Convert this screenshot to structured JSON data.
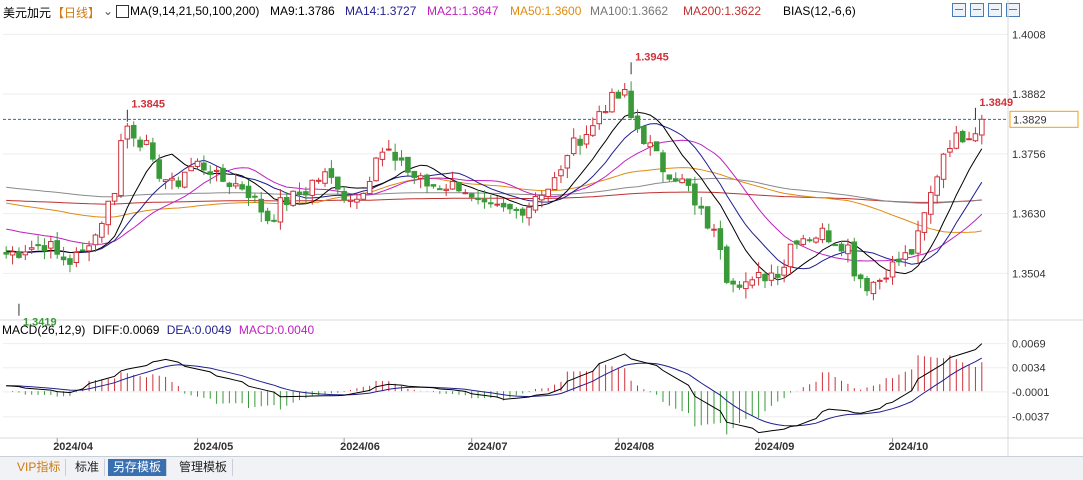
{
  "header": {
    "symbol": "美元加元",
    "period": "【日线】",
    "ma_label": "MA(9,14,21,50,100,200)",
    "ma9": "MA9:1.3786",
    "ma14": "MA14:1.3727",
    "ma21": "MA21:1.3647",
    "ma50": "MA50:1.3600",
    "ma100": "MA100:1.3662",
    "ma200": "MA200:1.3622",
    "bias": "BIAS(12,-6,6)"
  },
  "macd_header": {
    "label": "MACD(26,12,9)",
    "diff": "DIFF:0.0069",
    "dea": "DEA:0.0049",
    "macd": "MACD:0.0040"
  },
  "colors": {
    "up": "#d0303a",
    "down": "#3a9a3a",
    "ma9": "#000000",
    "ma14": "#1f1f8f",
    "ma21": "#c020c0",
    "ma50": "#e08a10",
    "ma100": "#8a8a8a",
    "ma200": "#c03030",
    "current_line": "#2a6ab0",
    "dea": "#1f1f8f",
    "diff": "#000000"
  },
  "bottom_tabs": [
    "VIP指标",
    "标准",
    "另存模板",
    "管理模板"
  ],
  "chart_data": {
    "type": "candlestick",
    "price_axis_ticks": [
      "1.4008",
      "1.3882",
      "1.3756",
      "1.3630",
      "1.3504"
    ],
    "current_price": "1.3829",
    "macd_axis_ticks": [
      "0.0069",
      "0.0034",
      "-0.0001",
      "-0.0037"
    ],
    "x_tick_labels": [
      "2024/04",
      "2024/05",
      "2024/06",
      "2024/07",
      "2024/08",
      "2024/09",
      "2024/10"
    ],
    "annotations": {
      "low": "1.3419",
      "high_april": "1.3845",
      "high_august": "1.3945",
      "high_recent": "1.3849"
    },
    "ylim": [
      1.341,
      1.403
    ],
    "anchors": [
      [
        "2024/03/20",
        1.3545
      ],
      [
        "2024/03/28",
        1.3565
      ],
      [
        "2024/04/03",
        1.353
      ],
      [
        "2024/04/09",
        1.3585
      ],
      [
        "2024/04/16",
        1.3815
      ],
      [
        "2024/04/19",
        1.377
      ],
      [
        "2024/04/25",
        1.369
      ],
      [
        "2024/05/01",
        1.3735
      ],
      [
        "2024/05/07",
        1.37
      ],
      [
        "2024/05/13",
        1.3675
      ],
      [
        "2024/05/16",
        1.362
      ],
      [
        "2024/05/22",
        1.3665
      ],
      [
        "2024/05/29",
        1.371
      ],
      [
        "2024/06/04",
        1.366
      ],
      [
        "2024/06/11",
        1.3755
      ],
      [
        "2024/06/14",
        1.3745
      ],
      [
        "2024/06/20",
        1.369
      ],
      [
        "2024/06/27",
        1.369
      ],
      [
        "2024/07/03",
        1.364
      ],
      [
        "2024/07/10",
        1.3635
      ],
      [
        "2024/07/17",
        1.3685
      ],
      [
        "2024/07/24",
        1.379
      ],
      [
        "2024/07/31",
        1.387
      ],
      [
        "2024/08/02",
        1.388
      ],
      [
        "2024/08/05",
        1.383
      ],
      [
        "2024/08/09",
        1.375
      ],
      [
        "2024/08/14",
        1.371
      ],
      [
        "2024/08/20",
        1.363
      ],
      [
        "2024/08/26",
        1.35
      ],
      [
        "2024/08/30",
        1.348
      ],
      [
        "2024/09/05",
        1.351
      ],
      [
        "2024/09/10",
        1.358
      ],
      [
        "2024/09/16",
        1.359
      ],
      [
        "2024/09/20",
        1.356
      ],
      [
        "2024/09/25",
        1.348
      ],
      [
        "2024/09/30",
        1.351
      ],
      [
        "2024/10/07",
        1.358
      ],
      [
        "2024/10/11",
        1.376
      ],
      [
        "2024/10/16",
        1.3795
      ],
      [
        "2024/10/21",
        1.3829
      ]
    ],
    "macd_anchors": [
      [
        "2024/03/20",
        0.0008
      ],
      [
        "2024/04/03",
        -0.0002
      ],
      [
        "2024/04/16",
        0.0032
      ],
      [
        "2024/04/24",
        0.0046
      ],
      [
        "2024/05/08",
        0.0018
      ],
      [
        "2024/05/20",
        -0.0008
      ],
      [
        "2024/06/03",
        -0.0006
      ],
      [
        "2024/06/12",
        0.001
      ],
      [
        "2024/06/26",
        0.0002
      ],
      [
        "2024/07/08",
        -0.0012
      ],
      [
        "2024/07/17",
        -0.0004
      ],
      [
        "2024/07/29",
        0.004
      ],
      [
        "2024/08/02",
        0.0054
      ],
      [
        "2024/08/12",
        0.003
      ],
      [
        "2024/08/26",
        -0.0045
      ],
      [
        "2024/09/02",
        -0.006
      ],
      [
        "2024/09/10",
        -0.005
      ],
      [
        "2024/09/17",
        -0.0026
      ],
      [
        "2024/09/24",
        -0.0032
      ],
      [
        "2024/10/01",
        -0.0016
      ],
      [
        "2024/10/11",
        0.004
      ],
      [
        "2024/10/21",
        0.0069
      ]
    ]
  }
}
